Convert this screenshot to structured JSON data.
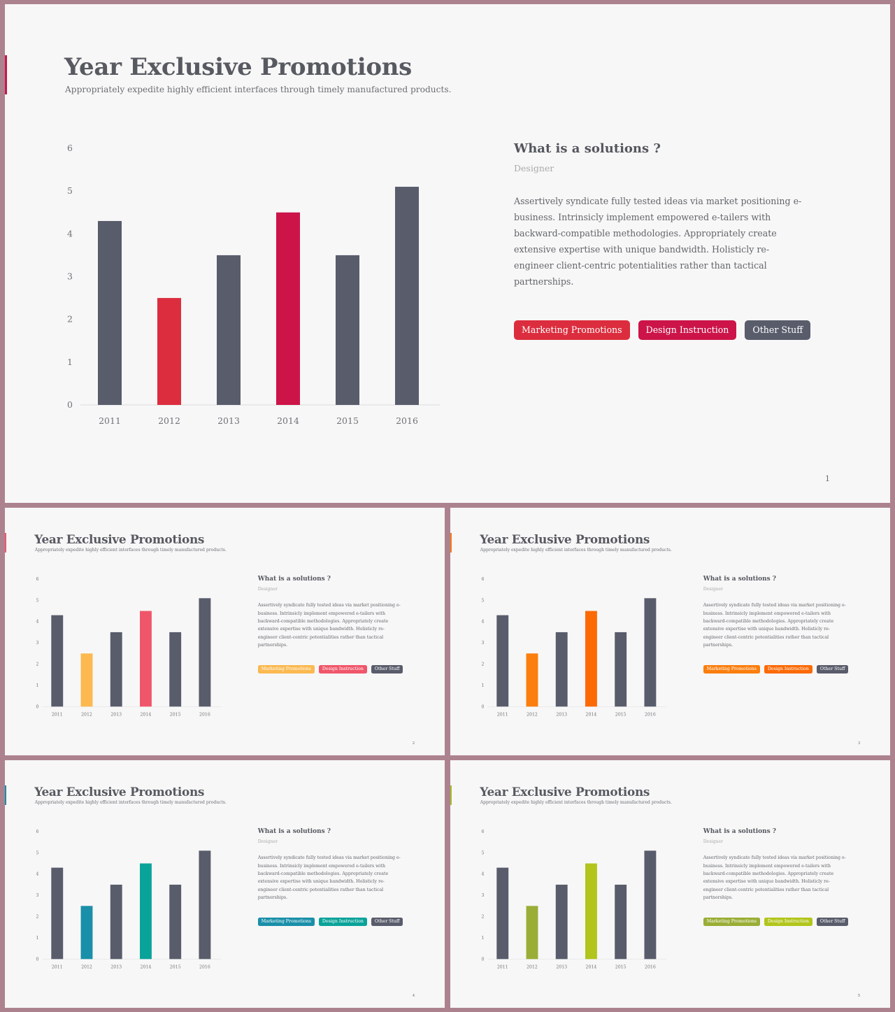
{
  "common": {
    "title": "Year Exclusive Promotions",
    "subtitle": "Appropriately expedite highly efficient interfaces through timely manufactured products.",
    "heading": "What is a solutions ?",
    "role": "Designer",
    "paragraph": "Assertively syndicate fully tested ideas via market positioning e-business. Intrinsicly implement empowered e-tailers with backward-compatible methodologies. Appropriately create extensive expertise with unique bandwidth. Holisticly re-engineer client-centric potentialities rather than tactical partnerships.",
    "tags": [
      "Marketing Promotions",
      "Design Instruction",
      "Other Stuff"
    ]
  },
  "slides": [
    {
      "page": "1",
      "colors": {
        "accent": "#c8174a",
        "bar_2012": "#dc2d3e",
        "bar_2014": "#cc1449",
        "tag1": "#dc2d3e",
        "tag2": "#cc1449",
        "tag3": "#595c6b"
      }
    },
    {
      "page": "2",
      "colors": {
        "accent": "#f0566a",
        "bar_2012": "#fbb950",
        "bar_2014": "#f0566a",
        "tag1": "#fbb950",
        "tag2": "#f0566a",
        "tag3": "#595c6b"
      }
    },
    {
      "page": "3",
      "colors": {
        "accent": "#f97a12",
        "bar_2012": "#fb7e0e",
        "bar_2014": "#fc6a06",
        "tag1": "#fb7e0e",
        "tag2": "#fc6a06",
        "tag3": "#595c6b"
      }
    },
    {
      "page": "4",
      "colors": {
        "accent": "#168fa8",
        "bar_2012": "#1a8fa9",
        "bar_2014": "#0aa39a",
        "tag1": "#1a8fa9",
        "tag2": "#0aa39a",
        "tag3": "#595c6b"
      }
    },
    {
      "page": "5",
      "colors": {
        "accent": "#a6bd2a",
        "bar_2012": "#9aad36",
        "bar_2014": "#b2c51c",
        "tag1": "#9aad36",
        "tag2": "#b2c51c",
        "tag3": "#595c6b"
      }
    }
  ],
  "chart_data": {
    "type": "bar",
    "categories": [
      "2011",
      "2012",
      "2013",
      "2014",
      "2015",
      "2016"
    ],
    "values": [
      4.3,
      2.5,
      3.5,
      4.5,
      3.5,
      5.1
    ],
    "ylim": [
      0,
      6
    ],
    "yticks": [
      0,
      1,
      2,
      3,
      4,
      5,
      6
    ],
    "grid": false,
    "default_bar_color": "#595c6b"
  }
}
